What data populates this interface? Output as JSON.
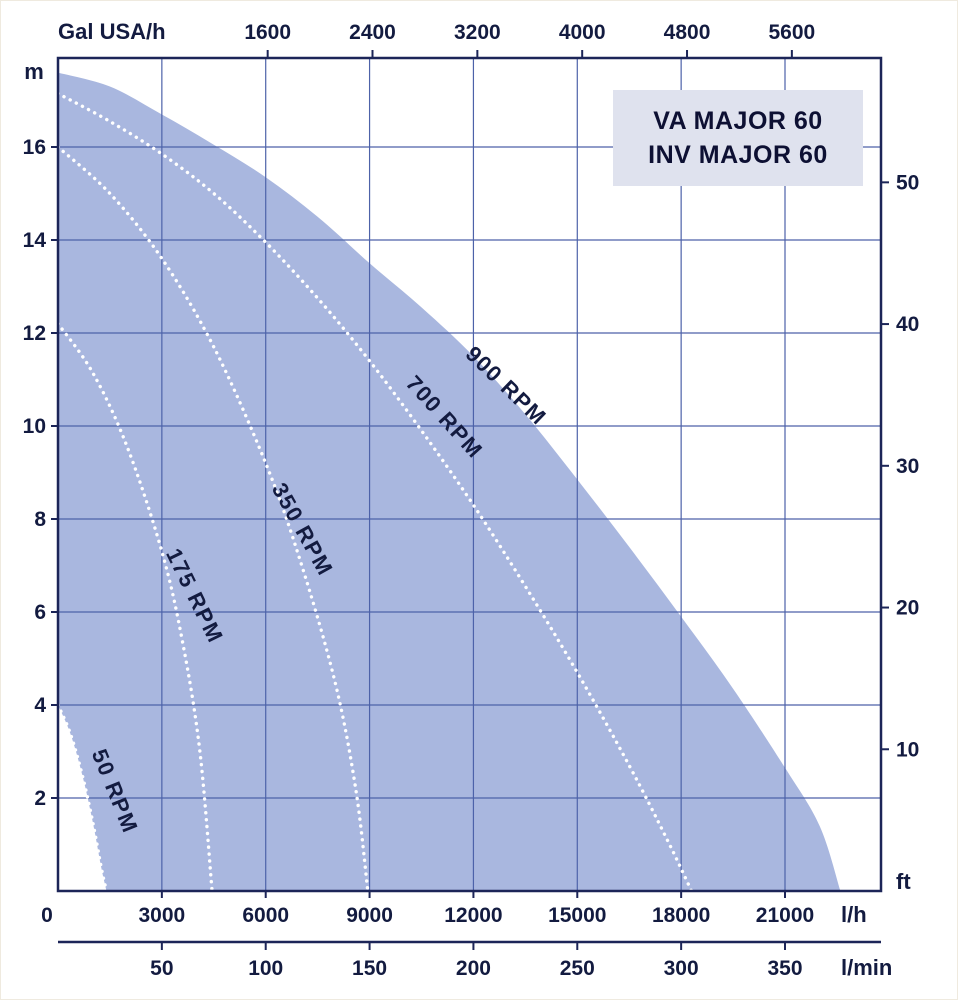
{
  "title_box": {
    "lines": [
      "VA MAJOR 60",
      "INV MAJOR 60"
    ]
  },
  "chart_data": {
    "type": "area",
    "title": "VA MAJOR 60 / INV MAJOR 60 pump performance curves (head vs flow at different RPM)",
    "grid": true,
    "legend": "none",
    "x_axes": {
      "bottom_lh": {
        "label": "l/h",
        "ticks": [
          0,
          3000,
          6000,
          9000,
          12000,
          15000,
          18000,
          21000
        ],
        "max": 23700
      },
      "bottom_lmin": {
        "label": "l/min",
        "ticks": [
          50,
          100,
          150,
          200,
          250,
          300,
          350
        ]
      },
      "top_gal": {
        "label": "Gal USA/h",
        "ticks": [
          1600,
          2400,
          3200,
          4000,
          4800,
          5600
        ]
      }
    },
    "y_axes": {
      "left_m": {
        "label": "m",
        "ticks": [
          2,
          4,
          6,
          8,
          10,
          12,
          14,
          16
        ],
        "max": 17.9
      },
      "right_ft": {
        "label": "ft",
        "ticks": [
          10,
          20,
          30,
          40,
          50
        ]
      }
    },
    "unit_conversions": {
      "lh_per_lmin": 60,
      "lh_per_gal_usa_h": 3.785412,
      "m_per_ft": 0.3048
    },
    "envelope_series": {
      "name": "900 RPM",
      "points": [
        [
          0,
          17.6
        ],
        [
          1500,
          17.3
        ],
        [
          3000,
          16.7
        ],
        [
          4500,
          16.05
        ],
        [
          6000,
          15.35
        ],
        [
          7500,
          14.5
        ],
        [
          9000,
          13.5
        ],
        [
          10500,
          12.55
        ],
        [
          12000,
          11.5
        ],
        [
          13500,
          10.25
        ],
        [
          15000,
          8.85
        ],
        [
          16500,
          7.4
        ],
        [
          18000,
          5.9
        ],
        [
          19500,
          4.35
        ],
        [
          21000,
          2.65
        ],
        [
          22000,
          1.4
        ],
        [
          22600,
          0
        ]
      ],
      "label_at": [
        500,
        390
      ],
      "label_angle": 44
    },
    "dotted_series": [
      {
        "name": "700 RPM",
        "points": [
          [
            0,
            17.15
          ],
          [
            1500,
            16.55
          ],
          [
            3000,
            15.85
          ],
          [
            4500,
            15.0
          ],
          [
            6000,
            13.95
          ],
          [
            7500,
            12.75
          ],
          [
            9000,
            11.4
          ],
          [
            10500,
            9.9
          ],
          [
            12000,
            8.3
          ],
          [
            13500,
            6.55
          ],
          [
            15000,
            4.7
          ],
          [
            16500,
            2.7
          ],
          [
            17600,
            1.1
          ],
          [
            18300,
            0
          ]
        ],
        "label_at": [
          438,
          421
        ],
        "label_angle": 48
      },
      {
        "name": "350 RPM",
        "points": [
          [
            0,
            16.0
          ],
          [
            1500,
            15.0
          ],
          [
            3000,
            13.6
          ],
          [
            4500,
            11.7
          ],
          [
            6000,
            9.2
          ],
          [
            7000,
            7.1
          ],
          [
            8000,
            4.5
          ],
          [
            8600,
            2.2
          ],
          [
            8950,
            0
          ]
        ],
        "label_at": [
          295,
          532
        ],
        "label_angle": 61
      },
      {
        "name": "175 RPM",
        "points": [
          [
            0,
            12.2
          ],
          [
            1000,
            11.15
          ],
          [
            2000,
            9.55
          ],
          [
            3000,
            7.3
          ],
          [
            3600,
            5.35
          ],
          [
            4100,
            3.0
          ],
          [
            4450,
            0
          ]
        ],
        "label_at": [
          187,
          598
        ],
        "label_angle": 64
      },
      {
        "name": "50 RPM",
        "points": [
          [
            0,
            4.0
          ],
          [
            350,
            3.4
          ],
          [
            700,
            2.5
          ],
          [
            1000,
            1.5
          ],
          [
            1250,
            0.5
          ],
          [
            1400,
            0
          ]
        ],
        "label_at": [
          107,
          793
        ],
        "label_angle": 68,
        "fill_lower_bound": true
      }
    ],
    "colors": {
      "fill": "#a9b7df",
      "grid": "#4d62a9",
      "axis": "#1c2558",
      "text": "#131b40",
      "dotted": "#ffffff",
      "title_bg": "#dfe2ee",
      "title_text": "#0d1033"
    }
  }
}
